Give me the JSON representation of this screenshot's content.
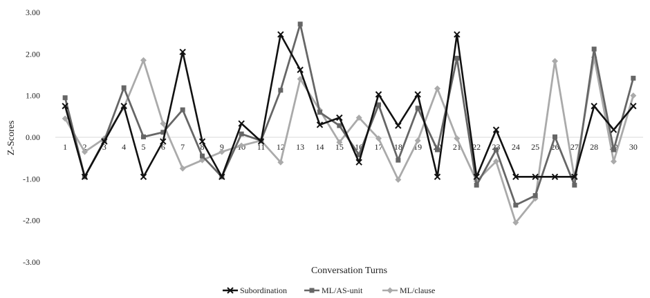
{
  "chart_data": {
    "type": "line",
    "title": "",
    "xlabel": "Conversation Turns",
    "ylabel": "Z-Scores",
    "ylim": [
      -3,
      3
    ],
    "yticks": [
      "3.00",
      "2.00",
      "1.00",
      "0.00",
      "-1.00",
      "-2.00",
      "-3.00"
    ],
    "categories": [
      "1",
      "2",
      "3",
      "4",
      "5",
      "6",
      "7",
      "8",
      "9",
      "10",
      "11",
      "12",
      "13",
      "14",
      "15",
      "16",
      "17",
      "18",
      "19",
      "20",
      "21",
      "22",
      "23",
      "24",
      "25",
      "26",
      "27",
      "28",
      "29",
      "30"
    ],
    "grid": false,
    "legend": "bottom",
    "series": [
      {
        "name": "Subordination",
        "color": "#111111",
        "marker": "x",
        "values": [
          0.75,
          -0.95,
          -0.1,
          0.75,
          -0.95,
          -0.1,
          2.05,
          -0.1,
          -0.95,
          0.33,
          -0.1,
          2.47,
          1.62,
          0.3,
          0.47,
          -0.6,
          1.03,
          0.28,
          1.03,
          -0.95,
          2.47,
          -0.95,
          0.18,
          -0.95,
          -0.95,
          -0.95,
          -0.95,
          0.75,
          0.18,
          0.75
        ]
      },
      {
        "name": "ML/AS-unit",
        "color": "#666666",
        "marker": "square",
        "values": [
          0.95,
          -0.95,
          -0.08,
          1.19,
          0.01,
          0.12,
          0.66,
          -0.45,
          -0.95,
          0.08,
          -0.08,
          1.13,
          2.72,
          0.6,
          0.28,
          -0.42,
          0.78,
          -0.55,
          0.7,
          -0.3,
          1.9,
          -1.15,
          -0.3,
          -1.63,
          -1.4,
          0.01,
          -1.15,
          2.12,
          -0.3,
          1.42
        ]
      },
      {
        "name": "ML/clause",
        "color": "#aaaaaa",
        "marker": "diamond",
        "values": [
          0.45,
          -0.35,
          -0.03,
          0.72,
          1.85,
          0.33,
          -0.75,
          -0.55,
          -0.35,
          -0.2,
          -0.08,
          -0.6,
          1.4,
          0.65,
          -0.12,
          0.47,
          -0.03,
          -1.02,
          -0.08,
          1.17,
          -0.03,
          -1.05,
          -0.58,
          -2.05,
          -1.47,
          1.83,
          -0.98,
          1.92,
          -0.58,
          1.0
        ]
      }
    ]
  }
}
